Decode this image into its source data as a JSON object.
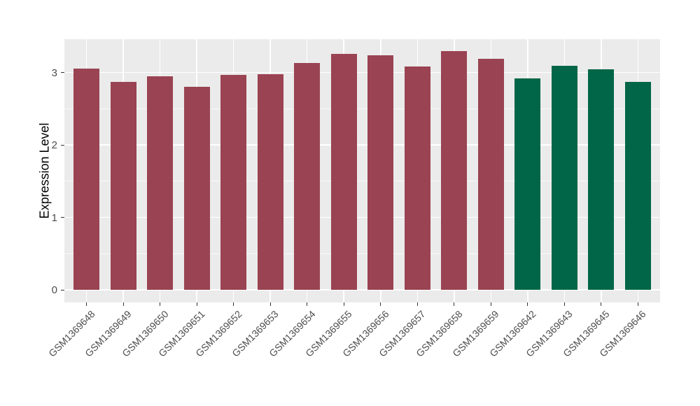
{
  "chart_data": {
    "type": "bar",
    "title": "",
    "xlabel": "",
    "ylabel": "Expression Level",
    "ylim": [
      -0.17,
      3.46
    ],
    "yticks": [
      0,
      1,
      2,
      3
    ],
    "minor_gridlines": [
      0.5,
      1.5,
      2.5
    ],
    "grid": true,
    "legend_position": "none",
    "categories": [
      "GSM1369648",
      "GSM1369649",
      "GSM1369650",
      "GSM1369651",
      "GSM1369652",
      "GSM1369653",
      "GSM1369654",
      "GSM1369655",
      "GSM1369656",
      "GSM1369657",
      "GSM1369658",
      "GSM1369659",
      "GSM1369642",
      "GSM1369643",
      "GSM1369645",
      "GSM1369646"
    ],
    "values": [
      3.05,
      2.87,
      2.95,
      2.8,
      2.97,
      2.98,
      3.13,
      3.26,
      3.24,
      3.08,
      3.29,
      3.19,
      2.92,
      3.09,
      3.04,
      2.87
    ],
    "bar_colors": [
      "#9A4352",
      "#9A4352",
      "#9A4352",
      "#9A4352",
      "#9A4352",
      "#9A4352",
      "#9A4352",
      "#9A4352",
      "#9A4352",
      "#9A4352",
      "#9A4352",
      "#9A4352",
      "#006647",
      "#006647",
      "#006647",
      "#006647"
    ],
    "group_colors": {
      "group_1": "#9A4352",
      "group_2": "#006647"
    },
    "panel_background": "#EBEBEB",
    "gridline_color": "#FFFFFF",
    "axis_text_color": "#4D4D4D",
    "axis_title_color": "#000000"
  }
}
